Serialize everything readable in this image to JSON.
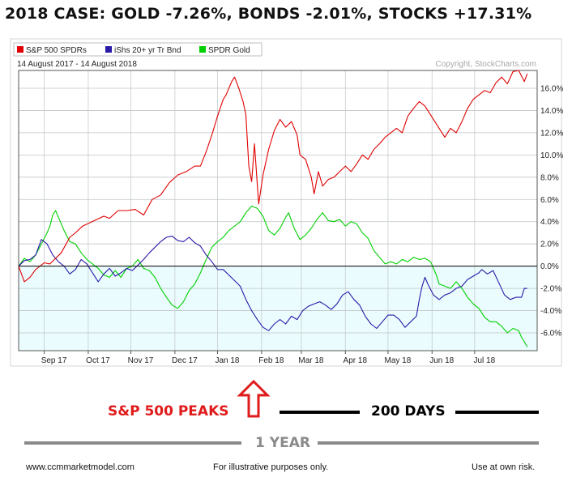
{
  "headline": "2018 CASE:   GOLD -7.26%, BONDS -2.01%, STOCKS +17.31%",
  "annotations": {
    "peaks_label": "S&P 500 PEAKS",
    "days_label": "200 DAYS",
    "year_label": "1 YEAR"
  },
  "footer": {
    "left": "www.ccmmarketmodel.com",
    "middle": "For illustrative purposes only.",
    "right": "Use at own risk."
  },
  "colors": {
    "spy": "#e00000",
    "tlt": "#2a1aa8",
    "gld": "#00d000",
    "lower_fill": "#eafcfd",
    "annotation_red": "#e01b1b",
    "year_gray": "#8a8a8a"
  },
  "chart_data": {
    "type": "line",
    "date_range": "14 August 2017 - 14 August 2018",
    "copyright": "Copyright, StockCharts.com",
    "ylim": [
      -7.6,
      17.6
    ],
    "y_ticks": [
      16,
      14,
      12,
      10,
      8,
      6,
      4,
      2,
      0,
      -2,
      -4,
      -6
    ],
    "y_tick_labels": [
      "16.0%",
      "14.0%",
      "12.0%",
      "10.0%",
      "8.0%",
      "6.0%",
      "4.0%",
      "2.0%",
      "0.0%",
      "-2.0%",
      "-4.0%",
      "-6.0%"
    ],
    "x_month_labels": [
      "Sep 17",
      "Oct 17",
      "Nov 17",
      "Dec 17",
      "Jan 18",
      "Feb 18",
      "Mar 18",
      "Apr 18",
      "May 18",
      "Jun 18",
      "Jul 18"
    ],
    "x_month_days": [
      18,
      49,
      79,
      110,
      140,
      171,
      199,
      230,
      260,
      291,
      321
    ],
    "x_total_days": 365,
    "series": [
      {
        "name": "S&P 500 SPDRs",
        "points": [
          [
            0,
            0.0
          ],
          [
            4,
            -1.4
          ],
          [
            8,
            -1.0
          ],
          [
            12,
            -0.3
          ],
          [
            18,
            0.3
          ],
          [
            22,
            0.2
          ],
          [
            30,
            1.2
          ],
          [
            36,
            2.6
          ],
          [
            40,
            3.0
          ],
          [
            45,
            3.6
          ],
          [
            50,
            3.9
          ],
          [
            55,
            4.2
          ],
          [
            60,
            4.5
          ],
          [
            64,
            4.3
          ],
          [
            70,
            5.0
          ],
          [
            76,
            5.0
          ],
          [
            82,
            5.1
          ],
          [
            88,
            4.6
          ],
          [
            94,
            6.0
          ],
          [
            100,
            6.4
          ],
          [
            106,
            7.5
          ],
          [
            112,
            8.2
          ],
          [
            118,
            8.5
          ],
          [
            124,
            9.0
          ],
          [
            128,
            9.0
          ],
          [
            132,
            10.3
          ],
          [
            136,
            11.8
          ],
          [
            140,
            13.5
          ],
          [
            144,
            15.0
          ],
          [
            146,
            15.4
          ],
          [
            150,
            16.6
          ],
          [
            152,
            17.0
          ],
          [
            155,
            16.0
          ],
          [
            158,
            14.8
          ],
          [
            160,
            13.6
          ],
          [
            162,
            9.0
          ],
          [
            164,
            7.6
          ],
          [
            166,
            11.0
          ],
          [
            168,
            7.3
          ],
          [
            169,
            5.6
          ],
          [
            172,
            8.2
          ],
          [
            176,
            10.5
          ],
          [
            180,
            12.2
          ],
          [
            184,
            13.2
          ],
          [
            188,
            12.5
          ],
          [
            192,
            13.0
          ],
          [
            196,
            11.8
          ],
          [
            198,
            10.0
          ],
          [
            202,
            9.6
          ],
          [
            206,
            8.0
          ],
          [
            208,
            6.5
          ],
          [
            211,
            8.5
          ],
          [
            214,
            7.2
          ],
          [
            218,
            7.8
          ],
          [
            222,
            8.0
          ],
          [
            226,
            8.5
          ],
          [
            230,
            9.0
          ],
          [
            234,
            8.5
          ],
          [
            238,
            9.2
          ],
          [
            242,
            10.0
          ],
          [
            246,
            9.6
          ],
          [
            250,
            10.5
          ],
          [
            254,
            11.0
          ],
          [
            258,
            11.6
          ],
          [
            262,
            12.0
          ],
          [
            266,
            12.4
          ],
          [
            270,
            12.0
          ],
          [
            274,
            13.5
          ],
          [
            278,
            14.2
          ],
          [
            282,
            14.8
          ],
          [
            286,
            14.4
          ],
          [
            290,
            13.6
          ],
          [
            294,
            12.8
          ],
          [
            298,
            12.0
          ],
          [
            300,
            11.6
          ],
          [
            304,
            12.4
          ],
          [
            308,
            12.0
          ],
          [
            312,
            13.0
          ],
          [
            316,
            14.2
          ],
          [
            320,
            15.0
          ],
          [
            324,
            15.4
          ],
          [
            328,
            15.8
          ],
          [
            332,
            15.6
          ],
          [
            336,
            16.5
          ],
          [
            340,
            17.0
          ],
          [
            344,
            16.4
          ],
          [
            348,
            17.5
          ],
          [
            352,
            17.6
          ],
          [
            356,
            16.6
          ],
          [
            358,
            17.31
          ]
        ]
      },
      {
        "name": "iShs 20+ yr Tr Bnd",
        "points": [
          [
            0,
            0.0
          ],
          [
            4,
            0.5
          ],
          [
            8,
            0.6
          ],
          [
            12,
            1.0
          ],
          [
            16,
            2.4
          ],
          [
            20,
            2.0
          ],
          [
            24,
            1.0
          ],
          [
            28,
            0.4
          ],
          [
            32,
            0.0
          ],
          [
            36,
            -0.7
          ],
          [
            40,
            -0.3
          ],
          [
            44,
            0.6
          ],
          [
            48,
            0.2
          ],
          [
            52,
            -0.6
          ],
          [
            56,
            -1.4
          ],
          [
            60,
            -0.7
          ],
          [
            64,
            -0.2
          ],
          [
            68,
            -0.9
          ],
          [
            72,
            -0.6
          ],
          [
            76,
            -0.2
          ],
          [
            80,
            -0.4
          ],
          [
            84,
            0.1
          ],
          [
            88,
            0.6
          ],
          [
            92,
            1.2
          ],
          [
            96,
            1.7
          ],
          [
            100,
            2.2
          ],
          [
            104,
            2.6
          ],
          [
            108,
            2.7
          ],
          [
            112,
            2.3
          ],
          [
            116,
            2.2
          ],
          [
            120,
            2.6
          ],
          [
            124,
            2.1
          ],
          [
            128,
            1.8
          ],
          [
            132,
            1.0
          ],
          [
            136,
            0.4
          ],
          [
            140,
            -0.3
          ],
          [
            144,
            -0.3
          ],
          [
            148,
            -0.8
          ],
          [
            152,
            -1.3
          ],
          [
            156,
            -1.8
          ],
          [
            160,
            -3.0
          ],
          [
            164,
            -4.0
          ],
          [
            168,
            -4.8
          ],
          [
            172,
            -5.5
          ],
          [
            176,
            -5.8
          ],
          [
            180,
            -5.2
          ],
          [
            184,
            -4.8
          ],
          [
            188,
            -5.2
          ],
          [
            192,
            -4.5
          ],
          [
            196,
            -4.8
          ],
          [
            200,
            -4.0
          ],
          [
            204,
            -3.6
          ],
          [
            208,
            -3.4
          ],
          [
            212,
            -3.2
          ],
          [
            216,
            -3.5
          ],
          [
            220,
            -3.9
          ],
          [
            224,
            -3.4
          ],
          [
            228,
            -2.6
          ],
          [
            232,
            -2.3
          ],
          [
            236,
            -3.0
          ],
          [
            240,
            -3.5
          ],
          [
            244,
            -4.5
          ],
          [
            248,
            -5.2
          ],
          [
            252,
            -5.6
          ],
          [
            256,
            -5.0
          ],
          [
            260,
            -4.4
          ],
          [
            264,
            -4.4
          ],
          [
            268,
            -4.8
          ],
          [
            272,
            -5.5
          ],
          [
            276,
            -5.0
          ],
          [
            280,
            -4.5
          ],
          [
            282,
            -3.0
          ],
          [
            284,
            -1.8
          ],
          [
            286,
            -1.0
          ],
          [
            288,
            -1.6
          ],
          [
            292,
            -2.6
          ],
          [
            296,
            -3.0
          ],
          [
            300,
            -2.6
          ],
          [
            304,
            -2.4
          ],
          [
            308,
            -2.0
          ],
          [
            312,
            -1.8
          ],
          [
            316,
            -1.2
          ],
          [
            320,
            -0.9
          ],
          [
            324,
            -0.6
          ],
          [
            326,
            -0.3
          ],
          [
            330,
            -0.7
          ],
          [
            334,
            -0.4
          ],
          [
            338,
            -1.5
          ],
          [
            342,
            -2.6
          ],
          [
            346,
            -3.0
          ],
          [
            350,
            -2.8
          ],
          [
            354,
            -2.8
          ],
          [
            356,
            -2.0
          ],
          [
            358,
            -2.01
          ]
        ]
      },
      {
        "name": "SPDR Gold",
        "points": [
          [
            0,
            0.0
          ],
          [
            4,
            0.7
          ],
          [
            8,
            0.4
          ],
          [
            12,
            1.0
          ],
          [
            16,
            2.0
          ],
          [
            20,
            3.0
          ],
          [
            22,
            3.6
          ],
          [
            24,
            4.6
          ],
          [
            26,
            5.0
          ],
          [
            28,
            4.4
          ],
          [
            32,
            3.2
          ],
          [
            36,
            2.2
          ],
          [
            40,
            2.0
          ],
          [
            44,
            1.2
          ],
          [
            48,
            0.6
          ],
          [
            52,
            0.2
          ],
          [
            56,
            -0.2
          ],
          [
            60,
            -0.8
          ],
          [
            64,
            -1.0
          ],
          [
            68,
            -0.4
          ],
          [
            72,
            -1.0
          ],
          [
            76,
            -0.2
          ],
          [
            80,
            0.0
          ],
          [
            84,
            0.6
          ],
          [
            88,
            -0.2
          ],
          [
            92,
            -0.4
          ],
          [
            96,
            -1.0
          ],
          [
            100,
            -2.0
          ],
          [
            104,
            -2.8
          ],
          [
            108,
            -3.5
          ],
          [
            112,
            -3.8
          ],
          [
            116,
            -3.2
          ],
          [
            120,
            -2.2
          ],
          [
            124,
            -1.6
          ],
          [
            128,
            -0.6
          ],
          [
            132,
            0.6
          ],
          [
            136,
            1.7
          ],
          [
            140,
            2.2
          ],
          [
            144,
            2.6
          ],
          [
            148,
            3.2
          ],
          [
            152,
            3.6
          ],
          [
            156,
            4.0
          ],
          [
            160,
            4.8
          ],
          [
            164,
            5.4
          ],
          [
            168,
            5.2
          ],
          [
            172,
            4.5
          ],
          [
            176,
            3.2
          ],
          [
            180,
            2.8
          ],
          [
            184,
            3.4
          ],
          [
            188,
            4.4
          ],
          [
            190,
            4.8
          ],
          [
            194,
            3.4
          ],
          [
            198,
            2.4
          ],
          [
            202,
            2.8
          ],
          [
            206,
            3.4
          ],
          [
            210,
            4.2
          ],
          [
            214,
            4.8
          ],
          [
            218,
            4.1
          ],
          [
            222,
            4.0
          ],
          [
            226,
            4.2
          ],
          [
            230,
            3.6
          ],
          [
            234,
            4.0
          ],
          [
            238,
            3.8
          ],
          [
            242,
            3.0
          ],
          [
            246,
            2.5
          ],
          [
            250,
            1.4
          ],
          [
            254,
            0.8
          ],
          [
            258,
            0.2
          ],
          [
            262,
            0.4
          ],
          [
            266,
            0.2
          ],
          [
            270,
            0.6
          ],
          [
            274,
            0.4
          ],
          [
            278,
            0.8
          ],
          [
            282,
            0.6
          ],
          [
            286,
            0.7
          ],
          [
            290,
            0.4
          ],
          [
            294,
            -0.8
          ],
          [
            296,
            -1.6
          ],
          [
            300,
            -1.8
          ],
          [
            304,
            -2.0
          ],
          [
            308,
            -1.4
          ],
          [
            312,
            -2.0
          ],
          [
            316,
            -2.8
          ],
          [
            320,
            -3.4
          ],
          [
            324,
            -3.8
          ],
          [
            328,
            -4.6
          ],
          [
            332,
            -5.0
          ],
          [
            336,
            -5.0
          ],
          [
            340,
            -5.4
          ],
          [
            344,
            -6.0
          ],
          [
            348,
            -5.6
          ],
          [
            352,
            -5.8
          ],
          [
            354,
            -6.4
          ],
          [
            356,
            -6.8
          ],
          [
            358,
            -7.26
          ]
        ]
      }
    ]
  }
}
